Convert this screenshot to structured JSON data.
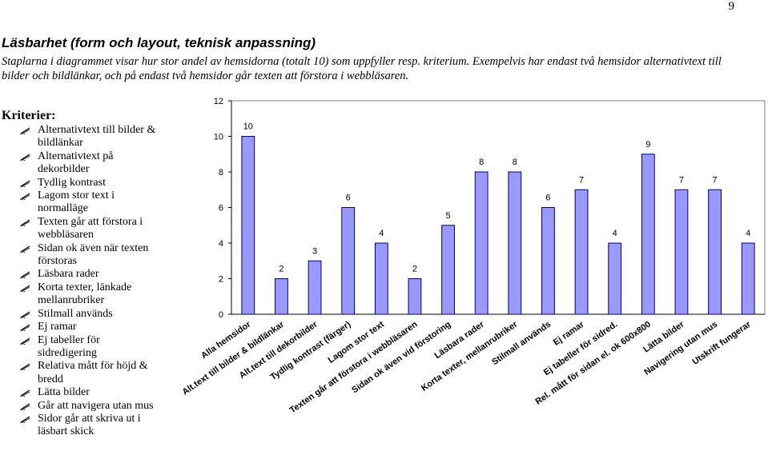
{
  "page": {
    "number": "9",
    "heading": "Läsbarhet (form och layout, teknisk anpassning)",
    "intro": "Staplarna i diagrammet visar hur stor andel av hemsidorna (totalt 10) som uppfyller resp. kriterium. Exempelvis har endast två hemsidor alternativtext till bilder och bildlänkar, och på endast två hemsidor går texten att förstora i webbläsaren."
  },
  "criteria": {
    "title": "Kriterier:",
    "bullet_icon": "pen-bullet-icon",
    "items": [
      "Alternativtext till bilder & bildlänkar",
      "Alternativtext på dekorbilder",
      "Tydlig kontrast",
      "Lagom stor text i normalläge",
      "Texten går att förstora i webbläsaren",
      "Sidan ok även när texten förstoras",
      "Läsbara rader",
      "Korta texter, länkade mellanrubriker",
      "Stilmall används",
      "Ej ramar",
      "Ej tabeller för sidredigering",
      "Relativa mått för höjd & bredd",
      "Lätta bilder",
      "Går att navigera utan mus",
      "Sidor går att skriva ut i läsbart skick"
    ]
  },
  "chart_data": {
    "type": "bar",
    "categories": [
      "Alla hemsidor",
      "Alt.text till bilder & bildlänkar",
      "Alt.text till dekorbilder",
      "Tydlig kontrast (färger)",
      "Lagom stor text",
      "Texten går att förstora i webbläsaren",
      "Sidan ok även vid förstoring",
      "Läsbara rader",
      "Korta texter, mellanrubriker",
      "Stilmall används",
      "Ej ramar",
      "Ej tabeller för sidred.",
      "Rel. mått för sidan el. ok 600x800",
      "Lätta bilder",
      "Navigering utan mus",
      "Utskrift fungerar"
    ],
    "values": [
      10,
      2,
      3,
      6,
      4,
      2,
      5,
      8,
      8,
      6,
      7,
      4,
      9,
      7,
      7,
      4
    ],
    "data_labels": [
      "10",
      "2",
      "3",
      "6",
      "4",
      "2",
      "5",
      "8",
      "8",
      "6",
      "7",
      "4",
      "9",
      "7",
      "7",
      "4"
    ],
    "y_ticks": [
      "0",
      "2",
      "4",
      "6",
      "8",
      "10",
      "12"
    ],
    "ylim": [
      0,
      12
    ],
    "grid": false,
    "legend": false,
    "bar_color": "#9999ff",
    "bar_edge_color": "#000080",
    "plot_background": "#ffffff"
  }
}
